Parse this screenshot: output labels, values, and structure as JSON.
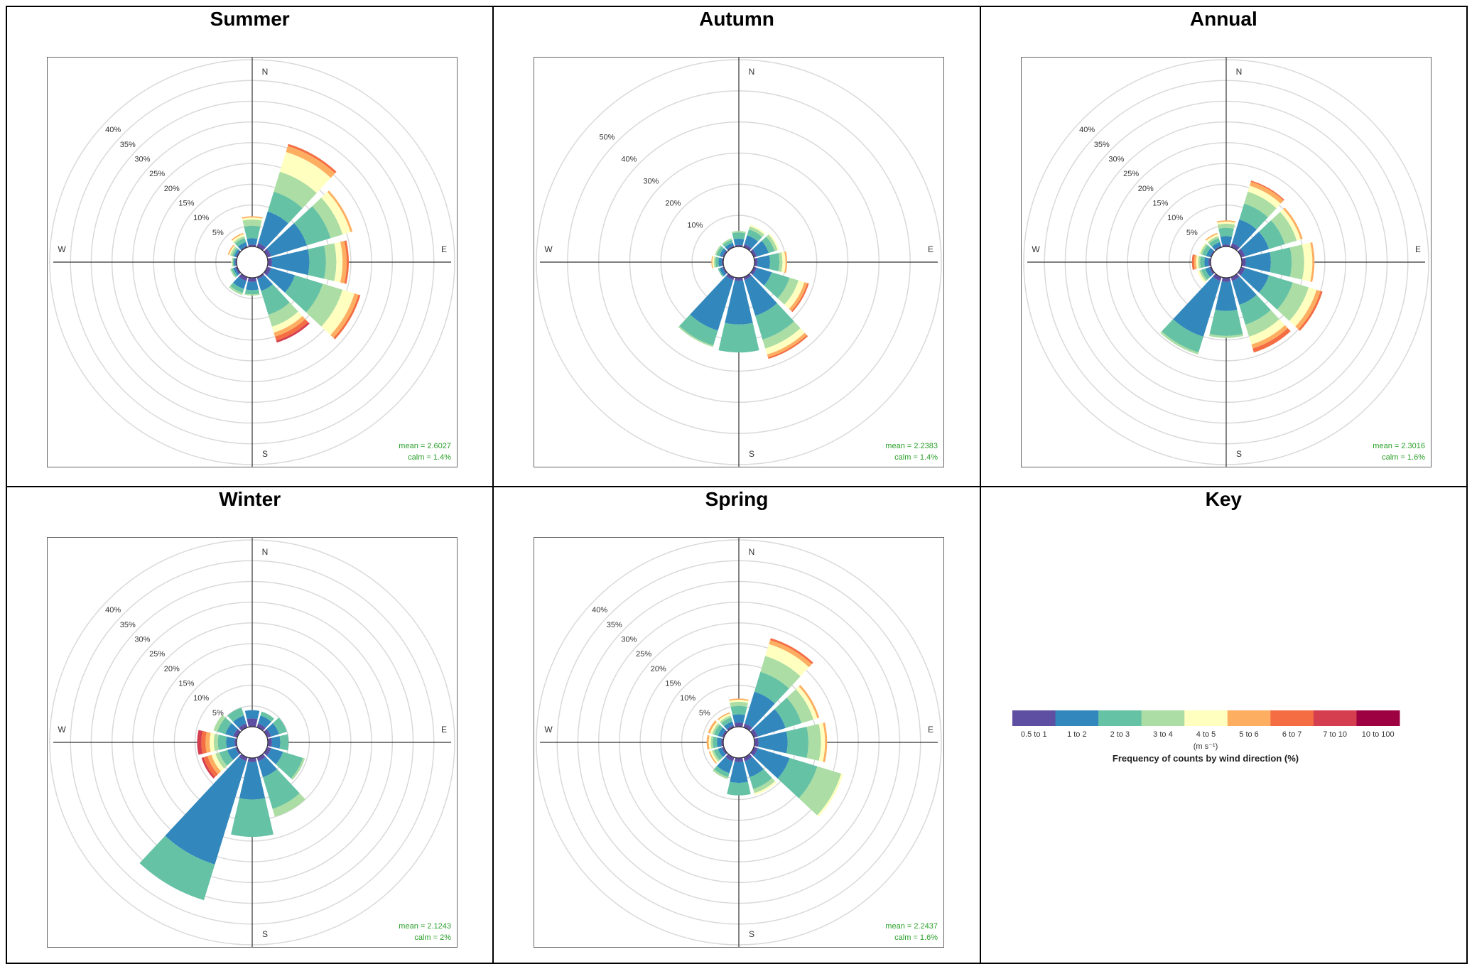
{
  "panels": [
    {
      "title": "Summer",
      "mean": "mean = 2.6027",
      "calm": "calm = 1.4%"
    },
    {
      "title": "Autumn",
      "mean": "mean = 2.2383",
      "calm": "calm = 1.4%"
    },
    {
      "title": "Annual",
      "mean": "mean = 2.3016",
      "calm": "calm = 1.6%"
    },
    {
      "title": "Winter",
      "mean": "mean = 2.1243",
      "calm": "calm = 2%"
    },
    {
      "title": "Spring",
      "mean": "mean = 2.2437",
      "calm": "calm = 1.6%"
    },
    {
      "title": "Key"
    }
  ],
  "chart_data": [
    {
      "type": "windrose",
      "title": "Summer",
      "rmax": 45,
      "ring_step": 5,
      "ring_labels": [
        "5%",
        "10%",
        "15%",
        "20%",
        "25%",
        "30%",
        "35%",
        "40%"
      ],
      "directions": [
        0,
        30,
        60,
        90,
        120,
        150,
        180,
        210,
        240,
        270,
        300,
        330
      ],
      "bins": [
        "0.5 to 1",
        "1 to 2",
        "2 to 3",
        "3 to 4",
        "4 to 5",
        "5 to 6",
        "6 to 7",
        "7 to 10",
        "10 to 100"
      ],
      "frequencies": [
        [
          0.5,
          1.5,
          3,
          1.5,
          0.5,
          0.3,
          0,
          0,
          0
        ],
        [
          1,
          8,
          5,
          5,
          5,
          1.5,
          0.5,
          0,
          0
        ],
        [
          1,
          9,
          6,
          3,
          2,
          0.5,
          0,
          0,
          0
        ],
        [
          1,
          9,
          4,
          2.5,
          1.5,
          1,
          0.5,
          0,
          0
        ],
        [
          1,
          6,
          7,
          5,
          3,
          1,
          0.5,
          0,
          0
        ],
        [
          0.5,
          3,
          6,
          3,
          1.5,
          1,
          1,
          0.5,
          0
        ],
        [
          1,
          2,
          1,
          0.3,
          0,
          0,
          0,
          0,
          0
        ],
        [
          1,
          2,
          1,
          0.5,
          0,
          0,
          0,
          0,
          0
        ],
        [
          0.5,
          0.5,
          0.5,
          0.3,
          0,
          0,
          0,
          0,
          0
        ],
        [
          0.3,
          0.3,
          0.3,
          0.2,
          0.2,
          0,
          0,
          0,
          0
        ],
        [
          0.3,
          0.5,
          0.5,
          0.5,
          0.3,
          0.3,
          0,
          0,
          0
        ],
        [
          0.3,
          1,
          1,
          0.5,
          0.5,
          0.3,
          0,
          0,
          0
        ]
      ],
      "axis_labels": {
        "N": "N",
        "E": "E",
        "S": "S",
        "W": "W"
      }
    },
    {
      "type": "windrose",
      "title": "Autumn",
      "rmax": 60,
      "ring_step": 10,
      "ring_labels": [
        "10%",
        "20%",
        "30%",
        "40%",
        "50%"
      ],
      "directions": [
        0,
        30,
        60,
        90,
        120,
        150,
        180,
        210,
        240,
        270,
        300,
        330
      ],
      "bins": [
        "0.5 to 1",
        "1 to 2",
        "2 to 3",
        "3 to 4",
        "4 to 5",
        "5 to 6",
        "6 to 7",
        "7 to 10",
        "10 to 100"
      ],
      "frequencies": [
        [
          0.5,
          2,
          2,
          0.5,
          0,
          0,
          0,
          0,
          0
        ],
        [
          1,
          3,
          2,
          1,
          0.5,
          0,
          0,
          0,
          0
        ],
        [
          1,
          4,
          2,
          1,
          0.5,
          0,
          0,
          0,
          0
        ],
        [
          1,
          4,
          3,
          1,
          1,
          0.5,
          0,
          0,
          0
        ],
        [
          1,
          5,
          6,
          3,
          2,
          1,
          0.5,
          0,
          0
        ],
        [
          1,
          12,
          8,
          3,
          2,
          1,
          0.5,
          0,
          0
        ],
        [
          1,
          14,
          9,
          0,
          0,
          0,
          0,
          0,
          0
        ],
        [
          1,
          17,
          5,
          0.5,
          0,
          0,
          0,
          0,
          0
        ],
        [
          0.5,
          1,
          0.5,
          0,
          0,
          0,
          0,
          0,
          0
        ],
        [
          0.5,
          1,
          1,
          0.5,
          0.5,
          0.3,
          0,
          0,
          0
        ],
        [
          0.5,
          1,
          1,
          0.5,
          0,
          0,
          0,
          0,
          0
        ],
        [
          0.5,
          1,
          1,
          0.5,
          0,
          0,
          0,
          0,
          0
        ]
      ],
      "axis_labels": {
        "N": "N",
        "E": "E",
        "S": "S",
        "W": "W"
      }
    },
    {
      "type": "windrose",
      "title": "Annual",
      "rmax": 45,
      "ring_step": 5,
      "ring_labels": [
        "5%",
        "10%",
        "15%",
        "20%",
        "25%",
        "30%",
        "35%",
        "40%"
      ],
      "directions": [
        0,
        30,
        60,
        90,
        120,
        150,
        180,
        210,
        240,
        270,
        300,
        330
      ],
      "bins": [
        "0.5 to 1",
        "1 to 2",
        "2 to 3",
        "3 to 4",
        "4 to 5",
        "5 to 6",
        "6 to 7",
        "7 to 10",
        "10 to 100"
      ],
      "frequencies": [
        [
          0.5,
          2,
          2,
          1,
          0.5,
          0.3,
          0,
          0,
          0
        ],
        [
          1,
          6,
          4,
          3,
          1.5,
          1,
          0.3,
          0,
          0
        ],
        [
          1,
          6,
          4,
          3,
          1,
          0.5,
          0,
          0,
          0
        ],
        [
          1,
          6,
          5,
          3,
          2,
          0.5,
          0,
          0,
          0
        ],
        [
          1,
          6,
          6,
          4,
          2,
          1,
          0.5,
          0,
          0
        ],
        [
          1,
          6,
          5,
          3,
          2,
          1,
          1,
          0,
          0
        ],
        [
          1,
          7,
          6,
          0.5,
          0,
          0,
          0,
          0,
          0
        ],
        [
          1,
          14,
          4,
          0.5,
          0,
          0,
          0,
          0,
          0
        ],
        [
          0.5,
          1,
          1,
          0.5,
          0.5,
          0,
          0,
          0,
          0
        ],
        [
          0.5,
          1,
          1,
          0.5,
          0.5,
          0.5,
          0.5,
          0,
          0
        ],
        [
          0.3,
          1,
          1,
          0.5,
          0.3,
          0,
          0,
          0,
          0
        ],
        [
          0.3,
          1,
          1,
          0.5,
          0.5,
          0.3,
          0,
          0,
          0
        ]
      ],
      "axis_labels": {
        "N": "N",
        "E": "E",
        "S": "S",
        "W": "W"
      }
    },
    {
      "type": "windrose",
      "title": "Winter",
      "rmax": 45,
      "ring_step": 5,
      "ring_labels": [
        "5%",
        "10%",
        "15%",
        "20%",
        "25%",
        "30%",
        "35%",
        "40%"
      ],
      "directions": [
        0,
        30,
        60,
        90,
        120,
        150,
        180,
        210,
        240,
        270,
        300,
        330
      ],
      "bins": [
        "0.5 to 1",
        "1 to 2",
        "2 to 3",
        "3 to 4",
        "4 to 5",
        "5 to 6",
        "6 to 7",
        "7 to 10",
        "10 to 100"
      ],
      "frequencies": [
        [
          2,
          2,
          0,
          0,
          0,
          0,
          0,
          0,
          0
        ],
        [
          1,
          2,
          1,
          0,
          0,
          0,
          0,
          0,
          0
        ],
        [
          1,
          2,
          2,
          0,
          0,
          0,
          0,
          0,
          0
        ],
        [
          1,
          2,
          2,
          0,
          0,
          0,
          0,
          0,
          0
        ],
        [
          1,
          3,
          5,
          0.5,
          0,
          0,
          0,
          0,
          0
        ],
        [
          1,
          4,
          8,
          2,
          0,
          0,
          0,
          0,
          0
        ],
        [
          1,
          9,
          9,
          0,
          0,
          0,
          0,
          0,
          0
        ],
        [
          1,
          26,
          9,
          0,
          0,
          0,
          0,
          0,
          0
        ],
        [
          0.5,
          2,
          2,
          1,
          1,
          1,
          1,
          0.5,
          0
        ],
        [
          0.5,
          2,
          2,
          1,
          1,
          1,
          1,
          1,
          0
        ],
        [
          1,
          2,
          2,
          1,
          0,
          0,
          0,
          0,
          0
        ],
        [
          1,
          2,
          2,
          0,
          0,
          0,
          0,
          0,
          0
        ]
      ],
      "axis_labels": {
        "N": "N",
        "E": "E",
        "S": "S",
        "W": "W"
      }
    },
    {
      "type": "windrose",
      "title": "Spring",
      "rmax": 45,
      "ring_step": 5,
      "ring_labels": [
        "5%",
        "10%",
        "15%",
        "20%",
        "25%",
        "30%",
        "35%",
        "40%"
      ],
      "directions": [
        0,
        30,
        60,
        90,
        120,
        150,
        180,
        210,
        240,
        270,
        300,
        330
      ],
      "bins": [
        "0.5 to 1",
        "1 to 2",
        "2 to 3",
        "3 to 4",
        "4 to 5",
        "5 to 6",
        "6 to 7",
        "7 to 10",
        "10 to 100"
      ],
      "frequencies": [
        [
          1,
          2,
          2,
          1,
          0.5,
          0.3,
          0,
          0,
          0
        ],
        [
          1,
          8,
          5,
          4,
          3,
          1,
          0.5,
          0,
          0
        ],
        [
          1,
          7,
          4,
          3,
          1,
          0.5,
          0,
          0,
          0
        ],
        [
          1,
          7,
          5,
          3,
          1,
          0.5,
          0,
          0,
          0
        ],
        [
          1,
          8,
          7,
          6,
          0.5,
          0,
          0,
          0,
          0
        ],
        [
          1,
          4,
          3,
          1,
          0.5,
          0,
          0,
          0,
          0
        ],
        [
          1,
          5,
          3,
          0,
          0,
          0,
          0,
          0,
          0
        ],
        [
          1,
          3,
          1,
          0.5,
          0,
          0,
          0,
          0,
          0
        ],
        [
          0.5,
          1,
          1,
          0.5,
          0.5,
          0.3,
          0,
          0,
          0
        ],
        [
          0.5,
          1,
          1,
          0.5,
          0.5,
          0.5,
          0,
          0,
          0
        ],
        [
          0.5,
          1,
          1,
          0.5,
          0.5,
          0.5,
          0,
          0,
          0
        ],
        [
          0.5,
          1,
          1,
          0.5,
          0.5,
          0.3,
          0,
          0,
          0
        ]
      ],
      "axis_labels": {
        "N": "N",
        "E": "E",
        "S": "S",
        "W": "W"
      }
    }
  ],
  "legend": {
    "items": [
      {
        "label": "0.5 to 1",
        "color": "#5e4fa2"
      },
      {
        "label": "1 to 2",
        "color": "#3288bd"
      },
      {
        "label": "2 to 3",
        "color": "#66c2a5"
      },
      {
        "label": "3 to 4",
        "color": "#abdda4"
      },
      {
        "label": "4 to 5",
        "color": "#ffffbf"
      },
      {
        "label": "5 to 6",
        "color": "#fdae61"
      },
      {
        "label": "6 to 7",
        "color": "#f46d43"
      },
      {
        "label": "7 to 10",
        "color": "#d53e4f"
      },
      {
        "label": "10 to 100",
        "color": "#9e0142"
      }
    ],
    "unit": "(m s⁻¹)",
    "caption": "Frequency of counts by wind direction (%)"
  },
  "colors": {
    "stats_text": "#2ca02c",
    "ring": "#d9d9d9",
    "axis": "#333333"
  }
}
